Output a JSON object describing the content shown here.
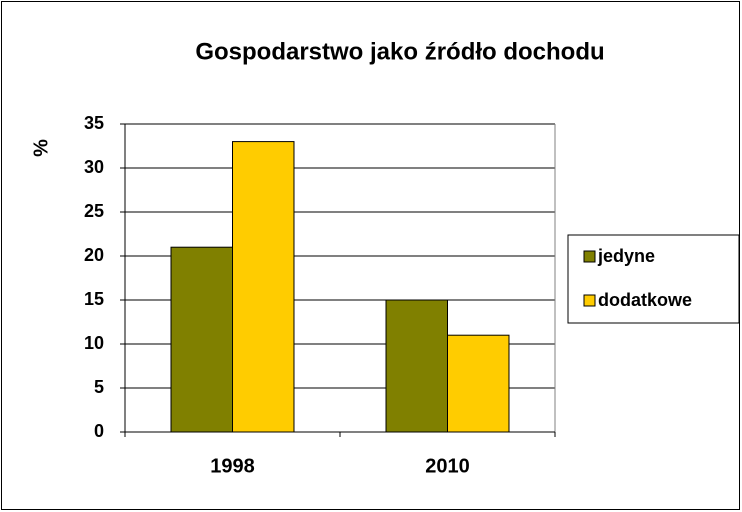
{
  "chart_data": {
    "type": "bar",
    "title": "Gospodarstwo jako źródło dochodu",
    "y_label": "%",
    "categories": [
      "1998",
      "2010"
    ],
    "series": [
      {
        "name": "jedyne",
        "color": "#808000",
        "values": [
          21,
          15
        ]
      },
      {
        "name": "dodatkowe",
        "color": "#ffcc00",
        "values": [
          33,
          11
        ]
      }
    ],
    "ylim": [
      0,
      35
    ],
    "yticks": [
      0,
      5,
      10,
      15,
      20,
      25,
      30,
      35
    ],
    "grid": true,
    "legend": "right"
  }
}
